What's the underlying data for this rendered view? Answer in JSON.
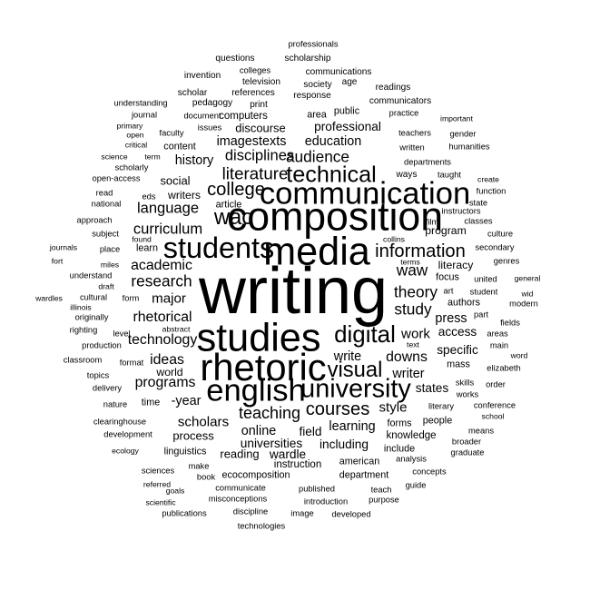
{
  "word_cloud": {
    "text_color": "#000000",
    "background_color": "#ffffff",
    "words": [
      {
        "text": "writing",
        "weight": 100
      },
      {
        "text": "composition",
        "weight": 62
      },
      {
        "text": "media",
        "weight": 60
      },
      {
        "text": "studies",
        "weight": 60
      },
      {
        "text": "rhetoric",
        "weight": 58
      },
      {
        "text": "communication",
        "weight": 48
      },
      {
        "text": "english",
        "weight": 48
      },
      {
        "text": "students",
        "weight": 45
      },
      {
        "text": "university",
        "weight": 40
      },
      {
        "text": "technical",
        "weight": 35
      },
      {
        "text": "digital",
        "weight": 36
      },
      {
        "text": "visual",
        "weight": 33
      },
      {
        "text": "wac",
        "weight": 33
      },
      {
        "text": "courses",
        "weight": 28
      },
      {
        "text": "college",
        "weight": 28
      },
      {
        "text": "information",
        "weight": 28
      },
      {
        "text": "literature",
        "weight": 26
      },
      {
        "text": "teaching",
        "weight": 25
      },
      {
        "text": "theory",
        "weight": 24
      },
      {
        "text": "study",
        "weight": 24
      },
      {
        "text": "research",
        "weight": 24
      },
      {
        "text": "waw",
        "weight": 24
      },
      {
        "text": "audience",
        "weight": 24
      },
      {
        "text": "disciplines",
        "weight": 23
      },
      {
        "text": "language",
        "weight": 23
      },
      {
        "text": "curriculum",
        "weight": 23
      },
      {
        "text": "rhetorical",
        "weight": 22
      },
      {
        "text": "technology",
        "weight": 22
      },
      {
        "text": "academic",
        "weight": 22
      },
      {
        "text": "programs",
        "weight": 22
      },
      {
        "text": "downs",
        "weight": 22
      },
      {
        "text": "ideas",
        "weight": 22
      },
      {
        "text": "style",
        "weight": 21
      },
      {
        "text": "scholars",
        "weight": 21
      },
      {
        "text": "major",
        "weight": 21
      },
      {
        "text": "work",
        "weight": 21
      },
      {
        "text": "press",
        "weight": 20
      },
      {
        "text": "write",
        "weight": 20
      },
      {
        "text": "online",
        "weight": 20
      },
      {
        "text": "education",
        "weight": 20
      },
      {
        "text": "history",
        "weight": 20
      },
      {
        "text": "imagestexts",
        "weight": 20
      },
      {
        "text": "writer",
        "weight": 20
      },
      {
        "text": "learning",
        "weight": 20
      },
      {
        "text": "-year",
        "weight": 20
      },
      {
        "text": "access",
        "weight": 19
      },
      {
        "text": "specific",
        "weight": 19
      },
      {
        "text": "states",
        "weight": 19
      },
      {
        "text": "field",
        "weight": 19
      },
      {
        "text": "professional",
        "weight": 19
      },
      {
        "text": "universities",
        "weight": 19
      },
      {
        "text": "including",
        "weight": 19
      },
      {
        "text": "wardle",
        "weight": 19
      },
      {
        "text": "process",
        "weight": 18
      },
      {
        "text": "reading",
        "weight": 18
      },
      {
        "text": "social",
        "weight": 18
      },
      {
        "text": "discourse",
        "weight": 18
      },
      {
        "text": "world",
        "weight": 17
      },
      {
        "text": "literacy",
        "weight": 17
      },
      {
        "text": "program",
        "weight": 17
      },
      {
        "text": "writers",
        "weight": 17
      },
      {
        "text": "computers",
        "weight": 16
      },
      {
        "text": "knowledge",
        "weight": 16
      },
      {
        "text": "instruction",
        "weight": 16
      },
      {
        "text": "american",
        "weight": 15
      },
      {
        "text": "department",
        "weight": 15
      },
      {
        "text": "ecocomposition",
        "weight": 15
      },
      {
        "text": "linguistics",
        "weight": 15
      },
      {
        "text": "include",
        "weight": 15
      },
      {
        "text": "forms",
        "weight": 15
      },
      {
        "text": "people",
        "weight": 15
      },
      {
        "text": "mass",
        "weight": 15
      },
      {
        "text": "authors",
        "weight": 15
      },
      {
        "text": "focus",
        "weight": 15
      },
      {
        "text": "learn",
        "weight": 15
      },
      {
        "text": "content",
        "weight": 15
      },
      {
        "text": "article",
        "weight": 15
      },
      {
        "text": "time",
        "weight": 15
      },
      {
        "text": "public",
        "weight": 15
      },
      {
        "text": "area",
        "weight": 15
      },
      {
        "text": "society",
        "weight": 14
      },
      {
        "text": "response",
        "weight": 14
      },
      {
        "text": "communicators",
        "weight": 14
      },
      {
        "text": "readings",
        "weight": 14
      },
      {
        "text": "pedagogy",
        "weight": 14
      },
      {
        "text": "print",
        "weight": 14
      },
      {
        "text": "scholar",
        "weight": 14
      },
      {
        "text": "references",
        "weight": 14
      },
      {
        "text": "television",
        "weight": 14
      },
      {
        "text": "age",
        "weight": 14
      },
      {
        "text": "colleges",
        "weight": 13
      },
      {
        "text": "communications",
        "weight": 14
      },
      {
        "text": "invention",
        "weight": 14
      },
      {
        "text": "questions",
        "weight": 14
      },
      {
        "text": "scholarship",
        "weight": 14
      },
      {
        "text": "professionals",
        "weight": 13
      },
      {
        "text": "understanding",
        "weight": 13
      },
      {
        "text": "journal",
        "weight": 13
      },
      {
        "text": "document",
        "weight": 13
      },
      {
        "text": "issues",
        "weight": 13
      },
      {
        "text": "practice",
        "weight": 13
      },
      {
        "text": "important",
        "weight": 12
      },
      {
        "text": "teachers",
        "weight": 13
      },
      {
        "text": "gender",
        "weight": 13
      },
      {
        "text": "written",
        "weight": 13
      },
      {
        "text": "humanities",
        "weight": 13
      },
      {
        "text": "departments",
        "weight": 13
      },
      {
        "text": "ways",
        "weight": 14
      },
      {
        "text": "taught",
        "weight": 13
      },
      {
        "text": "create",
        "weight": 12
      },
      {
        "text": "function",
        "weight": 13
      },
      {
        "text": "state",
        "weight": 13
      },
      {
        "text": "instructors",
        "weight": 13
      },
      {
        "text": "film",
        "weight": 13
      },
      {
        "text": "classes",
        "weight": 13
      },
      {
        "text": "culture",
        "weight": 13
      },
      {
        "text": "collins",
        "weight": 12
      },
      {
        "text": "secondary",
        "weight": 13
      },
      {
        "text": "terms",
        "weight": 12
      },
      {
        "text": "genres",
        "weight": 13
      },
      {
        "text": "united",
        "weight": 13
      },
      {
        "text": "general",
        "weight": 12
      },
      {
        "text": "student",
        "weight": 13
      },
      {
        "text": "art",
        "weight": 13
      },
      {
        "text": "wid",
        "weight": 12
      },
      {
        "text": "modern",
        "weight": 13
      },
      {
        "text": "part",
        "weight": 13
      },
      {
        "text": "fields",
        "weight": 13
      },
      {
        "text": "text",
        "weight": 12
      },
      {
        "text": "areas",
        "weight": 13
      },
      {
        "text": "main",
        "weight": 13
      },
      {
        "text": "word",
        "weight": 12
      },
      {
        "text": "elizabeth",
        "weight": 13
      },
      {
        "text": "skills",
        "weight": 13
      },
      {
        "text": "order",
        "weight": 13
      },
      {
        "text": "literary",
        "weight": 13
      },
      {
        "text": "works",
        "weight": 13
      },
      {
        "text": "conference",
        "weight": 13
      },
      {
        "text": "school",
        "weight": 12
      },
      {
        "text": "means",
        "weight": 13
      },
      {
        "text": "broader",
        "weight": 13
      },
      {
        "text": "graduate",
        "weight": 13
      },
      {
        "text": "analysis",
        "weight": 13
      },
      {
        "text": "concepts",
        "weight": 13
      },
      {
        "text": "guide",
        "weight": 13
      },
      {
        "text": "teach",
        "weight": 13
      },
      {
        "text": "purpose",
        "weight": 13
      },
      {
        "text": "developed",
        "weight": 13
      },
      {
        "text": "introduction",
        "weight": 13
      },
      {
        "text": "published",
        "weight": 13
      },
      {
        "text": "image",
        "weight": 13
      },
      {
        "text": "discipline",
        "weight": 13
      },
      {
        "text": "technologies",
        "weight": 13
      },
      {
        "text": "misconceptions",
        "weight": 13
      },
      {
        "text": "communicate",
        "weight": 13
      },
      {
        "text": "book",
        "weight": 13
      },
      {
        "text": "make",
        "weight": 13
      },
      {
        "text": "sciences",
        "weight": 13
      },
      {
        "text": "referred",
        "weight": 12
      },
      {
        "text": "goals",
        "weight": 12
      },
      {
        "text": "scientific",
        "weight": 12
      },
      {
        "text": "publications",
        "weight": 13
      },
      {
        "text": "ecology",
        "weight": 12
      },
      {
        "text": "development",
        "weight": 13
      },
      {
        "text": "clearinghouse",
        "weight": 13
      },
      {
        "text": "nature",
        "weight": 13
      },
      {
        "text": "delivery",
        "weight": 13
      },
      {
        "text": "topics",
        "weight": 13
      },
      {
        "text": "classroom",
        "weight": 13
      },
      {
        "text": "format",
        "weight": 13
      },
      {
        "text": "production",
        "weight": 13
      },
      {
        "text": "righting",
        "weight": 13
      },
      {
        "text": "level",
        "weight": 13
      },
      {
        "text": "originally",
        "weight": 13
      },
      {
        "text": "abstract",
        "weight": 12
      },
      {
        "text": "illinois",
        "weight": 12
      },
      {
        "text": "wardles",
        "weight": 12
      },
      {
        "text": "cultural",
        "weight": 13
      },
      {
        "text": "form",
        "weight": 13
      },
      {
        "text": "draft",
        "weight": 12
      },
      {
        "text": "understand",
        "weight": 13
      },
      {
        "text": "fort",
        "weight": 12
      },
      {
        "text": "miles",
        "weight": 12
      },
      {
        "text": "journals",
        "weight": 12
      },
      {
        "text": "place",
        "weight": 13
      },
      {
        "text": "subject",
        "weight": 13
      },
      {
        "text": "found",
        "weight": 12
      },
      {
        "text": "approach",
        "weight": 13
      },
      {
        "text": "national",
        "weight": 13
      },
      {
        "text": "read",
        "weight": 13
      },
      {
        "text": "eds",
        "weight": 13
      },
      {
        "text": "open-access",
        "weight": 13
      },
      {
        "text": "scholarly",
        "weight": 13
      },
      {
        "text": "science",
        "weight": 12
      },
      {
        "text": "term",
        "weight": 12
      },
      {
        "text": "critical",
        "weight": 12
      },
      {
        "text": "open",
        "weight": 12
      },
      {
        "text": "faculty",
        "weight": 13
      },
      {
        "text": "primary",
        "weight": 12
      }
    ]
  }
}
